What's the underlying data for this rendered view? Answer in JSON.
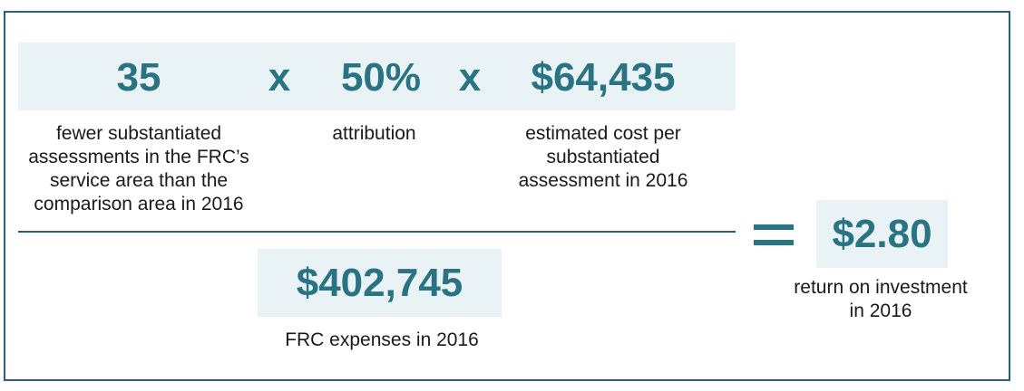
{
  "numerator": {
    "count": {
      "value": "35",
      "caption": "fewer substantiated\nassessments in the FRC’s\nservice area than the\ncomparison area in 2016"
    },
    "operator_1": "x",
    "attribution": {
      "value": "50%",
      "caption": "attribution"
    },
    "operator_2": "x",
    "cost": {
      "value": "$64,435",
      "caption": "estimated cost per\nsubstantiated\nassessment in 2016"
    }
  },
  "denominator": {
    "value": "$402,745",
    "caption": "FRC expenses in 2016"
  },
  "result": {
    "operator": "=",
    "value": "$2.80",
    "caption": "return on investment\nin 2016"
  },
  "colors": {
    "accent": "#2a7383",
    "box_fill": "#e9f3f5",
    "border": "#2e5f72"
  }
}
